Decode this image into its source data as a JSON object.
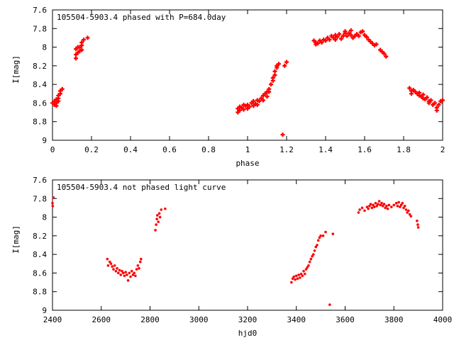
{
  "colors": {
    "marker": "#ff0000",
    "frame": "#000000",
    "background": "#ffffff"
  },
  "chart_data": [
    {
      "type": "scatter",
      "title": "105504-5903.4 phased with P=684.0day",
      "xlabel": "phase",
      "ylabel": "I[mag]",
      "xlim": [
        0,
        2
      ],
      "ylim": [
        9,
        7.6
      ],
      "y_inverted": true,
      "grid": false,
      "xticks": [
        "0",
        "0.2",
        "0.4",
        "0.6",
        "0.8",
        "1",
        "1.2",
        "1.4",
        "1.6",
        "1.8",
        "2"
      ],
      "yticks": [
        "7.6",
        "7.8",
        "8",
        "8.2",
        "8.4",
        "8.6",
        "8.8",
        "9"
      ],
      "series": [
        {
          "marker": "plus",
          "points": [
            [
              0.0,
              8.6
            ],
            [
              0.01,
              8.62
            ],
            [
              0.01,
              8.58
            ],
            [
              0.02,
              8.56
            ],
            [
              0.02,
              8.6
            ],
            [
              0.03,
              8.55
            ],
            [
              0.03,
              8.52
            ],
            [
              0.04,
              8.5
            ],
            [
              0.04,
              8.47
            ],
            [
              0.05,
              8.45
            ],
            [
              0.03,
              8.58
            ],
            [
              0.02,
              8.63
            ],
            [
              0.12,
              8.12
            ],
            [
              0.12,
              8.08
            ],
            [
              0.12,
              8.02
            ],
            [
              0.13,
              8.0
            ],
            [
              0.13,
              8.06
            ],
            [
              0.14,
              8.0
            ],
            [
              0.14,
              8.04
            ],
            [
              0.15,
              7.98
            ],
            [
              0.15,
              7.95
            ],
            [
              0.15,
              8.03
            ],
            [
              0.16,
              7.92
            ],
            [
              0.18,
              7.9
            ],
            [
              0.95,
              8.7
            ],
            [
              0.95,
              8.66
            ],
            [
              0.96,
              8.64
            ],
            [
              0.96,
              8.68
            ],
            [
              0.97,
              8.65
            ],
            [
              0.98,
              8.62
            ],
            [
              0.98,
              8.67
            ],
            [
              0.99,
              8.63
            ],
            [
              1.0,
              8.66
            ],
            [
              1.0,
              8.62
            ],
            [
              1.01,
              8.64
            ],
            [
              1.02,
              8.6
            ],
            [
              1.03,
              8.63
            ],
            [
              1.03,
              8.58
            ],
            [
              1.04,
              8.61
            ],
            [
              1.05,
              8.57
            ],
            [
              1.05,
              8.62
            ],
            [
              1.06,
              8.58
            ],
            [
              1.07,
              8.55
            ],
            [
              1.08,
              8.57
            ],
            [
              1.08,
              8.52
            ],
            [
              1.09,
              8.5
            ],
            [
              1.1,
              8.53
            ],
            [
              1.1,
              8.48
            ],
            [
              1.11,
              8.45
            ],
            [
              1.11,
              8.48
            ],
            [
              1.12,
              8.4
            ],
            [
              1.13,
              8.36
            ],
            [
              1.13,
              8.33
            ],
            [
              1.14,
              8.3
            ],
            [
              1.14,
              8.26
            ],
            [
              1.15,
              8.22
            ],
            [
              1.15,
              8.2
            ],
            [
              1.16,
              8.18
            ],
            [
              1.18,
              8.94
            ],
            [
              1.19,
              8.2
            ],
            [
              1.2,
              8.16
            ],
            [
              1.34,
              7.93
            ],
            [
              1.35,
              7.95
            ],
            [
              1.35,
              7.97
            ],
            [
              1.36,
              7.96
            ],
            [
              1.37,
              7.93
            ],
            [
              1.38,
              7.95
            ],
            [
              1.39,
              7.92
            ],
            [
              1.4,
              7.93
            ],
            [
              1.41,
              7.9
            ],
            [
              1.42,
              7.92
            ],
            [
              1.43,
              7.88
            ],
            [
              1.44,
              7.9
            ],
            [
              1.45,
              7.87
            ],
            [
              1.45,
              7.92
            ],
            [
              1.46,
              7.89
            ],
            [
              1.47,
              7.86
            ],
            [
              1.48,
              7.91
            ],
            [
              1.49,
              7.88
            ],
            [
              1.5,
              7.85
            ],
            [
              1.5,
              7.83
            ],
            [
              1.51,
              7.88
            ],
            [
              1.52,
              7.85
            ],
            [
              1.53,
              7.82
            ],
            [
              1.53,
              7.87
            ],
            [
              1.54,
              7.9
            ],
            [
              1.55,
              7.88
            ],
            [
              1.56,
              7.86
            ],
            [
              1.57,
              7.88
            ],
            [
              1.58,
              7.84
            ],
            [
              1.59,
              7.83
            ],
            [
              1.6,
              7.87
            ],
            [
              1.61,
              7.89
            ],
            [
              1.62,
              7.92
            ],
            [
              1.63,
              7.94
            ],
            [
              1.64,
              7.96
            ],
            [
              1.65,
              7.98
            ],
            [
              1.66,
              7.97
            ],
            [
              1.68,
              8.03
            ],
            [
              1.69,
              8.05
            ],
            [
              1.7,
              8.07
            ],
            [
              1.71,
              8.1
            ],
            [
              1.83,
              8.44
            ],
            [
              1.84,
              8.47
            ],
            [
              1.84,
              8.5
            ],
            [
              1.85,
              8.46
            ],
            [
              1.86,
              8.48
            ],
            [
              1.87,
              8.5
            ],
            [
              1.88,
              8.52
            ],
            [
              1.88,
              8.49
            ],
            [
              1.89,
              8.53
            ],
            [
              1.9,
              8.55
            ],
            [
              1.9,
              8.51
            ],
            [
              1.91,
              8.56
            ],
            [
              1.92,
              8.54
            ],
            [
              1.93,
              8.58
            ],
            [
              1.93,
              8.6
            ],
            [
              1.94,
              8.57
            ],
            [
              1.95,
              8.62
            ],
            [
              1.96,
              8.6
            ],
            [
              1.97,
              8.65
            ],
            [
              1.97,
              8.68
            ],
            [
              1.98,
              8.62
            ],
            [
              1.99,
              8.58
            ],
            [
              2.0,
              8.57
            ]
          ]
        }
      ]
    },
    {
      "type": "scatter",
      "title": "105504-5903.4 not phased light curve",
      "xlabel": "hjd0",
      "ylabel": "I[mag]",
      "xlim": [
        2400,
        4000
      ],
      "ylim": [
        9,
        7.6
      ],
      "y_inverted": true,
      "grid": false,
      "xticks": [
        "2400",
        "2600",
        "2800",
        "3000",
        "3200",
        "3400",
        "3600",
        "3800",
        "4000"
      ],
      "yticks": [
        "7.6",
        "7.8",
        "8",
        "8.2",
        "8.4",
        "8.6",
        "8.8",
        "9"
      ],
      "series": [
        {
          "marker": "dot",
          "points": [
            [
              2400,
              7.85
            ],
            [
              2401,
              7.88
            ],
            [
              2404,
              7.79
            ],
            [
              2625,
              8.45
            ],
            [
              2628,
              8.52
            ],
            [
              2635,
              8.48
            ],
            [
              2640,
              8.5
            ],
            [
              2645,
              8.53
            ],
            [
              2650,
              8.56
            ],
            [
              2655,
              8.52
            ],
            [
              2660,
              8.58
            ],
            [
              2665,
              8.55
            ],
            [
              2670,
              8.6
            ],
            [
              2675,
              8.57
            ],
            [
              2680,
              8.62
            ],
            [
              2685,
              8.58
            ],
            [
              2690,
              8.6
            ],
            [
              2695,
              8.63
            ],
            [
              2700,
              8.59
            ],
            [
              2705,
              8.62
            ],
            [
              2710,
              8.68
            ],
            [
              2715,
              8.6
            ],
            [
              2720,
              8.64
            ],
            [
              2725,
              8.58
            ],
            [
              2730,
              8.62
            ],
            [
              2735,
              8.6
            ],
            [
              2740,
              8.63
            ],
            [
              2745,
              8.56
            ],
            [
              2750,
              8.52
            ],
            [
              2755,
              8.55
            ],
            [
              2760,
              8.48
            ],
            [
              2763,
              8.45
            ],
            [
              2822,
              8.14
            ],
            [
              2825,
              8.08
            ],
            [
              2828,
              8.02
            ],
            [
              2830,
              7.98
            ],
            [
              2834,
              8.05
            ],
            [
              2838,
              7.96
            ],
            [
              2841,
              8.0
            ],
            [
              2846,
              7.92
            ],
            [
              2862,
              7.91
            ],
            [
              3380,
              8.7
            ],
            [
              3385,
              8.66
            ],
            [
              3390,
              8.64
            ],
            [
              3395,
              8.67
            ],
            [
              3400,
              8.63
            ],
            [
              3405,
              8.66
            ],
            [
              3410,
              8.62
            ],
            [
              3415,
              8.65
            ],
            [
              3420,
              8.61
            ],
            [
              3425,
              8.63
            ],
            [
              3430,
              8.58
            ],
            [
              3435,
              8.61
            ],
            [
              3440,
              8.56
            ],
            [
              3445,
              8.54
            ],
            [
              3450,
              8.52
            ],
            [
              3455,
              8.48
            ],
            [
              3460,
              8.45
            ],
            [
              3465,
              8.42
            ],
            [
              3470,
              8.4
            ],
            [
              3475,
              8.36
            ],
            [
              3480,
              8.32
            ],
            [
              3485,
              8.3
            ],
            [
              3490,
              8.25
            ],
            [
              3495,
              8.22
            ],
            [
              3500,
              8.2
            ],
            [
              3510,
              8.2
            ],
            [
              3520,
              8.16
            ],
            [
              3537,
              8.94
            ],
            [
              3550,
              8.18
            ],
            [
              3655,
              7.95
            ],
            [
              3660,
              7.92
            ],
            [
              3670,
              7.9
            ],
            [
              3680,
              7.93
            ],
            [
              3690,
              7.89
            ],
            [
              3695,
              7.91
            ],
            [
              3700,
              7.88
            ],
            [
              3705,
              7.86
            ],
            [
              3710,
              7.9
            ],
            [
              3715,
              7.87
            ],
            [
              3720,
              7.89
            ],
            [
              3725,
              7.85
            ],
            [
              3730,
              7.88
            ],
            [
              3735,
              7.86
            ],
            [
              3740,
              7.83
            ],
            [
              3745,
              7.87
            ],
            [
              3750,
              7.85
            ],
            [
              3755,
              7.88
            ],
            [
              3760,
              7.86
            ],
            [
              3765,
              7.9
            ],
            [
              3770,
              7.88
            ],
            [
              3775,
              7.91
            ],
            [
              3780,
              7.87
            ],
            [
              3790,
              7.89
            ],
            [
              3800,
              7.87
            ],
            [
              3810,
              7.85
            ],
            [
              3815,
              7.88
            ],
            [
              3820,
              7.84
            ],
            [
              3825,
              7.89
            ],
            [
              3830,
              7.87
            ],
            [
              3835,
              7.85
            ],
            [
              3840,
              7.9
            ],
            [
              3845,
              7.88
            ],
            [
              3850,
              7.92
            ],
            [
              3855,
              7.95
            ],
            [
              3860,
              7.93
            ],
            [
              3865,
              7.97
            ],
            [
              3870,
              7.99
            ],
            [
              3895,
              8.04
            ],
            [
              3898,
              8.08
            ],
            [
              3900,
              8.11
            ]
          ]
        }
      ]
    }
  ]
}
